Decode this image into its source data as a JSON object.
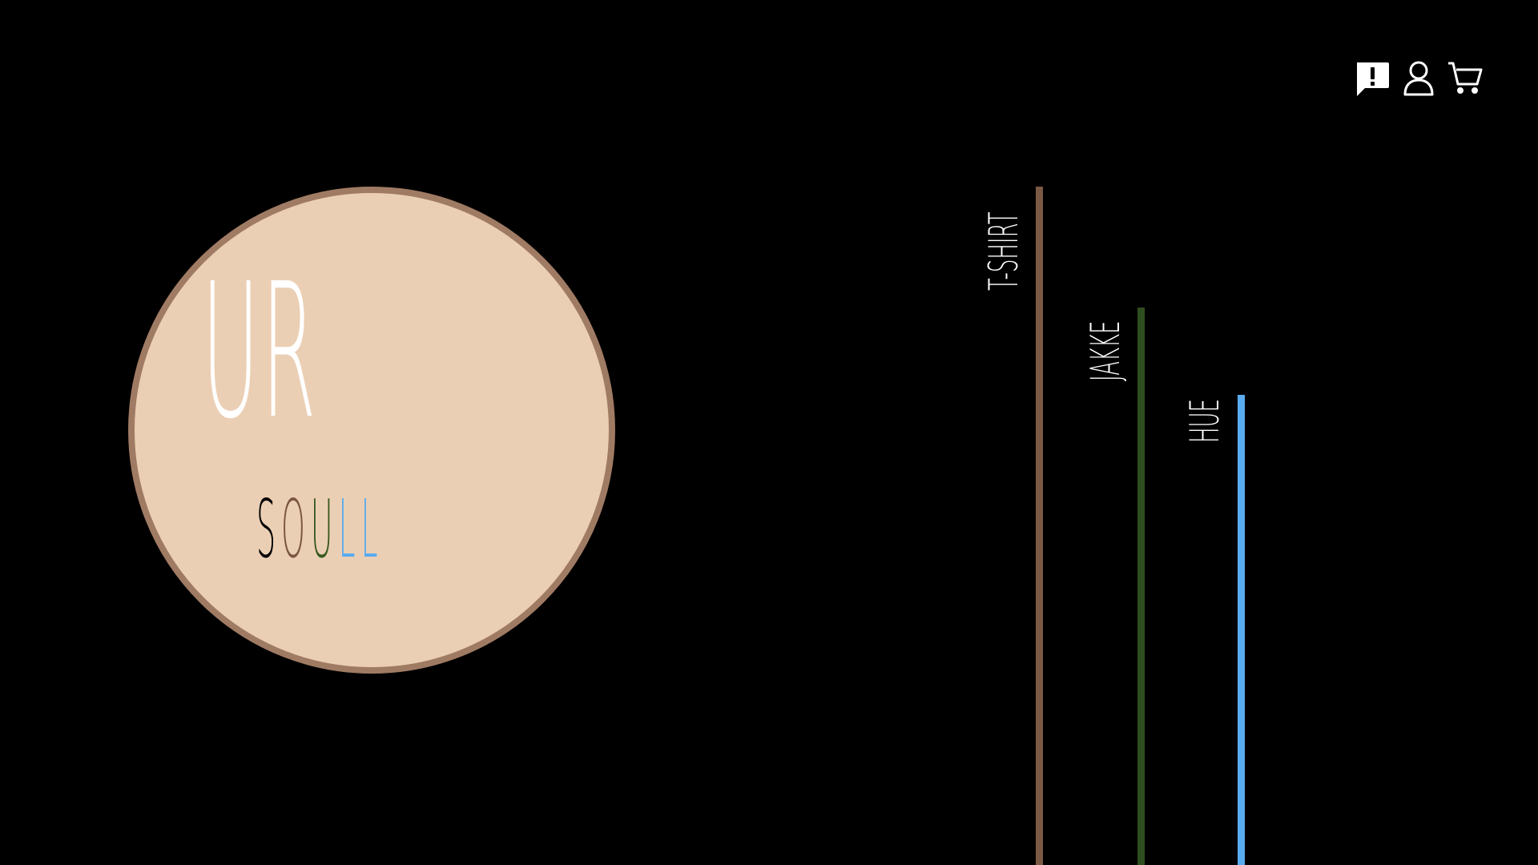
{
  "header": {
    "icons": [
      "feedback-icon",
      "user-icon",
      "cart-icon"
    ]
  },
  "logo": {
    "main": "UR",
    "sub_letters": [
      {
        "char": "S",
        "color": "#000000"
      },
      {
        "char": "O",
        "color": "#7b5642"
      },
      {
        "char": "U",
        "color": "#3a5a22"
      },
      {
        "char": "L",
        "color": "#5aacf0"
      },
      {
        "char": "L",
        "color": "#5aacf0"
      }
    ],
    "circle_fill": "#ebcfb4",
    "circle_border": "#a07b64"
  },
  "categories": [
    {
      "label": "T-SHIRT",
      "color": "#7b5a45"
    },
    {
      "label": "JAKKE",
      "color": "#2f4e1f"
    },
    {
      "label": "HUE",
      "color": "#5aacf0"
    }
  ]
}
